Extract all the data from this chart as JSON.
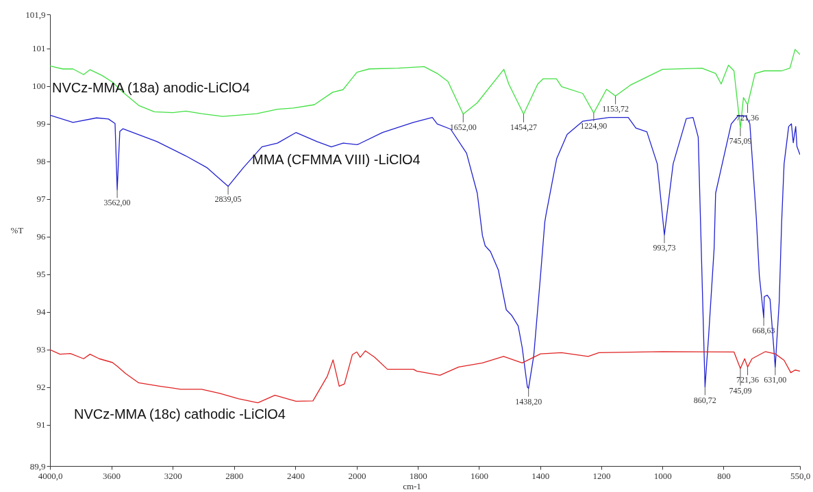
{
  "chart_data": [
    {
      "type": "line",
      "ylabel": "%T",
      "xlim": [
        4000,
        2000
      ],
      "ylim": [
        89.9,
        101.9
      ],
      "xticks": [
        {
          "value": 4000,
          "label": "4000,0"
        },
        3600,
        3200,
        2800,
        2400,
        2000
      ],
      "yticks": [
        {
          "value": 89.9,
          "label": "89,9"
        },
        91,
        92,
        93,
        94,
        95,
        96,
        97,
        98,
        99,
        100,
        101,
        {
          "value": 101.9,
          "label": "101,9"
        }
      ],
      "grid": false,
      "marker": "none",
      "line_style": "solid",
      "series": [
        {
          "name": "NVCz-MMA (18a) anodic-LiClO4",
          "color": "#40e040",
          "x": [
            4000,
            3918,
            3850,
            3781,
            3739,
            3662,
            3593,
            3525,
            3422,
            3320,
            3200,
            3115,
            3012,
            2875,
            2773,
            2653,
            2517,
            2414,
            2277,
            2158,
            2090,
            2004,
            2000
          ],
          "values": [
            100.53,
            100.45,
            100.45,
            100.3,
            100.43,
            100.28,
            100.1,
            99.83,
            99.48,
            99.31,
            99.29,
            99.33,
            99.26,
            99.19,
            99.22,
            99.26,
            99.38,
            99.41,
            99.5,
            99.83,
            99.9,
            100.34,
            100.36
          ]
        },
        {
          "name": "MMA (CFMMA VIII) -LiClO4",
          "color": "#2020d0",
          "x": [
            4000,
            3850,
            3696,
            3619,
            3576,
            3562,
            3545,
            3525,
            3303,
            3115,
            2978,
            2839.05,
            2739,
            2619,
            2517,
            2397,
            2260,
            2166,
            2089,
            2000
          ],
          "values": [
            99.22,
            99.03,
            99.15,
            99.12,
            99.0,
            97.24,
            98.79,
            98.86,
            98.52,
            98.14,
            97.83,
            97.33,
            97.83,
            98.38,
            98.48,
            98.76,
            98.52,
            98.38,
            98.48,
            98.44
          ]
        },
        {
          "name": "NVCz-MMA (18c) cathodic -LiClO4",
          "color": "#e02020",
          "x": [
            4000,
            3935,
            3867,
            3781,
            3739,
            3679,
            3593,
            3559,
            3508,
            3422,
            3286,
            3149,
            3012,
            2893,
            2773,
            2645,
            2534,
            2397,
            2286,
            2192,
            2155,
            2115,
            2081,
            2029,
            2000
          ],
          "values": [
            92.99,
            92.87,
            92.89,
            92.75,
            92.87,
            92.75,
            92.65,
            92.54,
            92.36,
            92.11,
            92.02,
            91.94,
            91.94,
            91.83,
            91.69,
            91.58,
            91.78,
            91.62,
            91.63,
            92.29,
            92.72,
            92.02,
            92.08,
            92.86,
            92.93
          ]
        }
      ],
      "annotations": [
        {
          "text": "3562,00",
          "x": 3562,
          "y": 97.24
        },
        {
          "text": "2839,05",
          "x": 2839.05,
          "y": 97.33
        }
      ]
    },
    {
      "type": "line",
      "xlabel": "cm-1",
      "xlim": [
        2000,
        550
      ],
      "ylim": [
        89.9,
        101.9
      ],
      "xticks": [
        1800,
        1600,
        1400,
        1200,
        1000,
        800,
        {
          "value": 550,
          "label": "550,0"
        }
      ],
      "yticks": [
        89.9,
        91,
        92,
        93,
        94,
        95,
        96,
        97,
        98,
        99,
        100,
        101,
        101.9
      ],
      "tick_labels": "x",
      "grid": false,
      "marker": "none",
      "line_style": "solid",
      "series": [
        {
          "color": "#40e040",
          "x": [
            2000,
            1960,
            1866,
            1780,
            1737,
            1702,
            1652,
            1606,
            1519,
            1503,
            1454.27,
            1408,
            1390,
            1347,
            1330,
            1261,
            1224.9,
            1183,
            1153.72,
            1105,
            1000,
            871,
            826,
            808,
            784,
            766,
            745.09,
            735,
            721.36,
            697,
            666,
            610,
            583,
            566,
            550
          ],
          "values": [
            100.36,
            100.45,
            100.47,
            100.51,
            100.33,
            100.12,
            99.25,
            99.55,
            100.44,
            100.05,
            99.25,
            100.05,
            100.19,
            100.19,
            99.98,
            99.8,
            99.28,
            99.91,
            99.73,
            100.02,
            100.44,
            100.47,
            100.33,
            100.05,
            100.55,
            100.4,
            98.88,
            99.69,
            99.5,
            100.33,
            100.4,
            100.4,
            100.47,
            100.97,
            100.83
          ]
        },
        {
          "color": "#2020d0",
          "x": [
            2000,
            1995,
            1916,
            1815,
            1753,
            1737,
            1693,
            1641,
            1606,
            1589,
            1580,
            1563,
            1537,
            1511,
            1494,
            1472,
            1459,
            1442,
            1438.2,
            1421,
            1399,
            1385,
            1381,
            1346,
            1312,
            1261,
            1174,
            1112,
            1087,
            1051,
            1017,
            993.73,
            965,
            922,
            900,
            883,
            860.72,
            849,
            831,
            826,
            775,
            753,
            745.09,
            727,
            714,
            693,
            683,
            668.63,
            667,
            657,
            648,
            631,
            618,
            610,
            602,
            587,
            578,
            572,
            564,
            560,
            550
          ],
          "values": [
            98.44,
            98.45,
            98.76,
            99.03,
            99.16,
            98.99,
            98.85,
            98.21,
            97.15,
            96.02,
            95.75,
            95.6,
            95.11,
            94.05,
            93.91,
            93.62,
            93.05,
            92.0,
            91.96,
            92.84,
            94.96,
            96.38,
            96.58,
            98.07,
            98.71,
            99.06,
            99.16,
            99.16,
            98.88,
            98.78,
            97.93,
            96.04,
            97.93,
            99.13,
            99.16,
            98.64,
            92.0,
            93.35,
            95.67,
            97.15,
            98.99,
            99.2,
            99.2,
            99.2,
            98.99,
            96.51,
            94.96,
            93.84,
            94.4,
            94.44,
            94.33,
            92.53,
            94.26,
            96.38,
            97.93,
            98.92,
            98.99,
            98.49,
            98.92,
            98.39,
            98.17
          ]
        },
        {
          "color": "#e02020",
          "x": [
            2000,
            1989,
            1972,
            1942,
            1900,
            1815,
            1804,
            1728,
            1667,
            1589,
            1520,
            1459,
            1399,
            1330,
            1243,
            1208,
            1000,
            766,
            745.09,
            731,
            721.36,
            707,
            663,
            631,
            602,
            580,
            566,
            550
          ],
          "values": [
            92.93,
            92.79,
            92.96,
            92.79,
            92.47,
            92.47,
            92.42,
            92.31,
            92.53,
            92.64,
            92.81,
            92.64,
            92.88,
            92.91,
            92.81,
            92.91,
            92.94,
            92.93,
            92.49,
            92.75,
            92.53,
            92.75,
            92.94,
            92.88,
            92.71,
            92.38,
            92.45,
            92.42
          ]
        }
      ],
      "annotations": [
        {
          "text": "1652,00",
          "x": 1652,
          "y": 99.25
        },
        {
          "text": "1454,27",
          "x": 1454.27,
          "y": 99.25
        },
        {
          "text": "1224,90",
          "x": 1224.9,
          "y": 99.28
        },
        {
          "text": "1153,72",
          "x": 1153.72,
          "y": 99.73
        },
        {
          "text": "721,36",
          "x": 721.36,
          "y": 99.5
        },
        {
          "text": "745,09",
          "x": 745.09,
          "y": 98.88
        },
        {
          "text": "993,73",
          "x": 993.73,
          "y": 96.04
        },
        {
          "text": "668,63",
          "x": 668.63,
          "y": 93.84
        },
        {
          "text": "1438,20",
          "x": 1438.2,
          "y": 91.96
        },
        {
          "text": "860,72",
          "x": 860.72,
          "y": 92.0
        },
        {
          "text": "721,36",
          "x": 721.36,
          "y": 92.53
        },
        {
          "text": "631,00",
          "x": 631,
          "y": 92.53
        },
        {
          "text": "745,09",
          "x": 745.09,
          "y": 92.49
        }
      ]
    }
  ]
}
